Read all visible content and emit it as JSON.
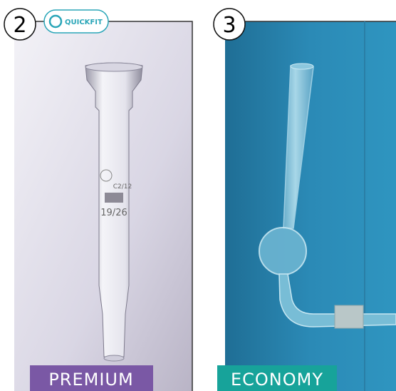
{
  "panels": [
    {
      "number": "2",
      "logo": "QUICKFIT",
      "label": "PREMIUM",
      "markings": [
        "19/26",
        "C2/12"
      ]
    },
    {
      "number": "3",
      "label": "ECONOMY"
    }
  ]
}
